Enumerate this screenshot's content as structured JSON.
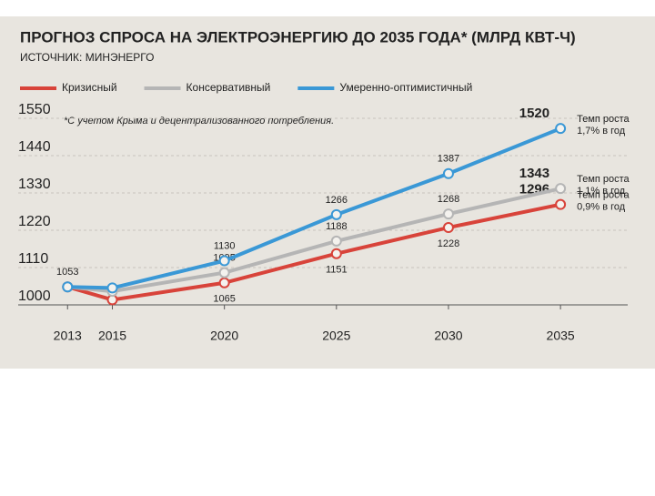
{
  "chart_data": {
    "type": "line",
    "title": "ПРОГНОЗ СПРОСА НА ЭЛЕКТРОЭНЕРГИЮ ДО 2035 ГОДА* (МЛРД КВТ-Ч)",
    "subtitle": "ИСТОЧНИК: МИНЭНЕРГО",
    "footnote": "*С учетом Крыма и децентрализованного потребления.",
    "x": [
      2013,
      2015,
      2020,
      2025,
      2030,
      2035
    ],
    "xticks": [
      2013,
      2015,
      2020,
      2025,
      2030,
      2035
    ],
    "xlim": [
      2011,
      2038
    ],
    "ylim": [
      1000,
      1550
    ],
    "yticks": [
      1000,
      1110,
      1220,
      1330,
      1440,
      1550
    ],
    "grid": true,
    "series": [
      {
        "name": "Кризисный",
        "color": "#d8433a",
        "values": [
          1053,
          1015,
          1065,
          1151,
          1228,
          1296
        ],
        "value_labels": [
          null,
          null,
          "1065",
          "1151",
          "1228",
          "1296"
        ]
      },
      {
        "name": "Консервативный",
        "color": "#b5b5b5",
        "values": [
          1053,
          1040,
          1095,
          1188,
          1268,
          1343
        ],
        "value_labels": [
          null,
          null,
          "1095",
          "1188",
          "1268",
          "1343"
        ]
      },
      {
        "name": "Умеренно-оптимистичный",
        "color": "#3a98d6",
        "values": [
          1053,
          1050,
          1130,
          1266,
          1387,
          1520
        ],
        "value_labels": [
          "1053",
          null,
          "1130",
          "1266",
          "1387",
          "1520"
        ]
      }
    ],
    "annotations": [
      [
        "Темп роста",
        "0,9% в год"
      ],
      [
        "Темп роста",
        "1,1% в год"
      ],
      [
        "Темп роста",
        "1,7% в год"
      ]
    ]
  }
}
